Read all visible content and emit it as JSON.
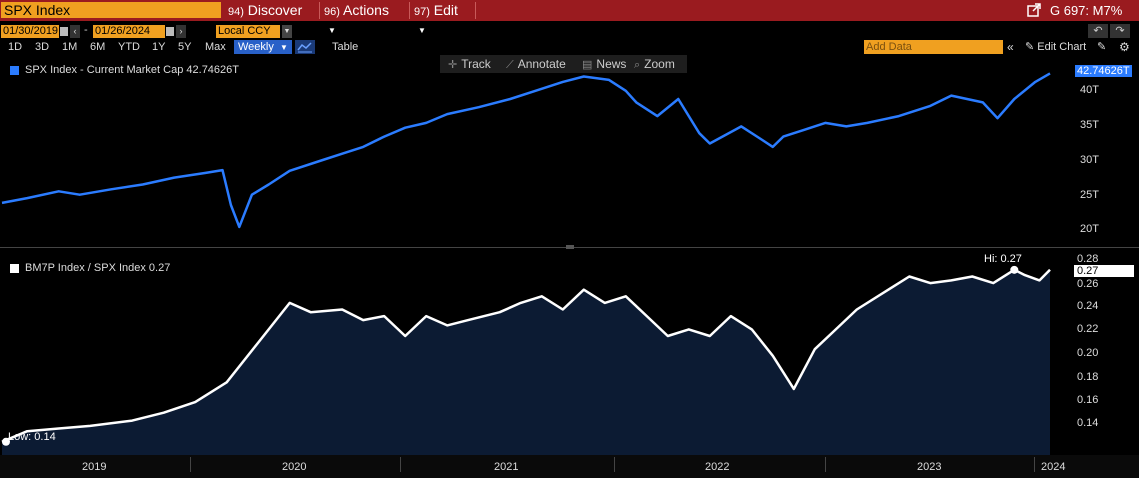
{
  "toolbar": {
    "ticker": "SPX Index",
    "menu": [
      {
        "num": "94)",
        "label": "Discover"
      },
      {
        "num": "96)",
        "label": "Actions"
      },
      {
        "num": "97)",
        "label": "Edit"
      }
    ],
    "right_label": "G 697: M7%"
  },
  "controls": {
    "date_start": "01/30/2019",
    "date_end": "01/26/2024",
    "currency": "Local CCY",
    "timeframes": [
      "1D",
      "3D",
      "1M",
      "6M",
      "YTD",
      "1Y",
      "5Y",
      "Max"
    ],
    "frequency": "Weekly",
    "table_label": "Table",
    "add_data_placeholder": "Add Data",
    "edit_chart_label": "Edit Chart"
  },
  "chart_tools": [
    "Track",
    "Annotate",
    "News",
    "Zoom"
  ],
  "colors": {
    "top_series": "#2b7cff",
    "bottom_line": "#ffffff",
    "bottom_fill": "#0c1b33",
    "menu_bar": "#9a1b1f",
    "input_orange": "#f0a020"
  },
  "chart_data": [
    {
      "type": "line",
      "legend": "SPX Index - Current Market Cap 42.74626T",
      "last_value_label": "42.74626T",
      "ylabels": [
        "40T",
        "35T",
        "30T",
        "25T",
        "20T"
      ],
      "ylim": [
        17.5,
        45
      ],
      "x_range": [
        2019.08,
        2024.07
      ],
      "series": [
        {
          "x": [
            2019.08,
            2019.2,
            2019.35,
            2019.45,
            2019.6,
            2019.75,
            2019.9,
            2020.05,
            2020.13,
            2020.17,
            2020.21,
            2020.27,
            2020.35,
            2020.45,
            2020.6,
            2020.7,
            2020.8,
            2020.9,
            2021.0,
            2021.1,
            2021.2,
            2021.35,
            2021.5,
            2021.62,
            2021.75,
            2021.85,
            2021.97,
            2022.05,
            2022.1,
            2022.2,
            2022.3,
            2022.4,
            2022.45,
            2022.6,
            2022.7,
            2022.75,
            2022.8,
            2022.9,
            2023.0,
            2023.1,
            2023.2,
            2023.35,
            2023.5,
            2023.6,
            2023.75,
            2023.82,
            2023.9,
            2024.0,
            2024.07
          ],
          "y": [
            23.8,
            24.5,
            25.5,
            25.0,
            25.8,
            26.5,
            27.5,
            28.2,
            28.6,
            23.5,
            20.3,
            25.0,
            26.5,
            28.5,
            30.0,
            31.0,
            32.0,
            33.5,
            34.8,
            35.5,
            36.8,
            37.8,
            39.0,
            40.2,
            41.5,
            42.3,
            41.8,
            40.2,
            38.5,
            36.5,
            39.0,
            34.0,
            32.5,
            35.0,
            33.0,
            32.0,
            33.5,
            34.5,
            35.5,
            35.0,
            35.5,
            36.5,
            38.0,
            39.5,
            38.5,
            36.2,
            39.0,
            41.5,
            42.75
          ]
        }
      ]
    },
    {
      "type": "area",
      "legend": "BM7P Index / SPX Index 0.27",
      "last_value_label": "0.27",
      "hi_label": "Hi: 0.27",
      "low_label": "Low: 0.14",
      "ylabels": [
        "0.28",
        "0.26",
        "0.24",
        "0.22",
        "0.20",
        "0.18",
        "0.16",
        "0.14"
      ],
      "ylim": [
        0.13,
        0.285
      ],
      "x_range": [
        2019.08,
        2024.07
      ],
      "xlabels": [
        "2019",
        "2020",
        "2021",
        "2022",
        "2023",
        "2024"
      ],
      "series": [
        {
          "x": [
            2019.08,
            2019.2,
            2019.35,
            2019.5,
            2019.7,
            2019.85,
            2020.0,
            2020.15,
            2020.3,
            2020.45,
            2020.55,
            2020.7,
            2020.8,
            2020.9,
            2021.0,
            2021.1,
            2021.2,
            2021.3,
            2021.45,
            2021.55,
            2021.65,
            2021.75,
            2021.85,
            2021.95,
            2022.05,
            2022.15,
            2022.25,
            2022.35,
            2022.45,
            2022.55,
            2022.65,
            2022.75,
            2022.85,
            2022.95,
            2023.05,
            2023.15,
            2023.3,
            2023.4,
            2023.5,
            2023.6,
            2023.7,
            2023.8,
            2023.9,
            2023.95,
            2024.02,
            2024.07
          ],
          "y": [
            0.14,
            0.148,
            0.15,
            0.152,
            0.156,
            0.162,
            0.17,
            0.185,
            0.215,
            0.245,
            0.238,
            0.24,
            0.232,
            0.235,
            0.22,
            0.235,
            0.228,
            0.232,
            0.238,
            0.245,
            0.25,
            0.24,
            0.255,
            0.245,
            0.25,
            0.235,
            0.22,
            0.225,
            0.22,
            0.235,
            0.225,
            0.205,
            0.18,
            0.21,
            0.225,
            0.24,
            0.255,
            0.265,
            0.26,
            0.262,
            0.265,
            0.26,
            0.27,
            0.266,
            0.262,
            0.27
          ]
        }
      ]
    }
  ]
}
